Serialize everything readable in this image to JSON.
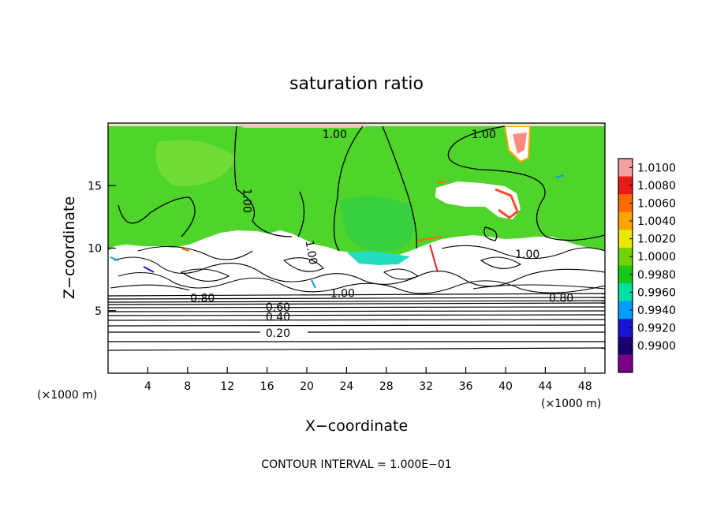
{
  "chart_data": {
    "type": "heatmap",
    "title": "saturation ratio",
    "xlabel": "X−coordinate",
    "ylabel": "Z−coordinate",
    "x_unit_left": "(×1000 m)",
    "x_unit_right": "(×1000 m)",
    "xlim": [
      0,
      50
    ],
    "ylim": [
      0,
      20
    ],
    "x_ticks": [
      4,
      8,
      12,
      16,
      20,
      24,
      28,
      32,
      36,
      40,
      44,
      48
    ],
    "y_ticks": [
      5,
      10,
      15
    ],
    "footer": "CONTOUR INTERVAL = 1.000E−01",
    "colorbar": {
      "levels": [
        "1.0100",
        "1.0080",
        "1.0060",
        "1.0040",
        "1.0020",
        "1.0000",
        "0.9980",
        "0.9960",
        "0.9940",
        "0.9920",
        "0.9900"
      ],
      "colors": [
        "#f4a0a0",
        "#e81b1b",
        "#ff6a00",
        "#ffa500",
        "#e8e800",
        "#6fd400",
        "#18c818",
        "#00e0a0",
        "#009cff",
        "#1616d2",
        "#1a0070",
        "#7a0088"
      ]
    },
    "contour_labels": [
      {
        "text": "1.00",
        "x": 22.8,
        "z": 18.8,
        "rot": 0
      },
      {
        "text": "1.00",
        "x": 37.8,
        "z": 18.8,
        "rot": 0
      },
      {
        "text": "1.00",
        "x": 13.6,
        "z": 13.8,
        "rot": 90
      },
      {
        "text": "1.00",
        "x": 20.1,
        "z": 9.6,
        "rot": 80
      },
      {
        "text": "1.00",
        "x": 42.2,
        "z": 9.2,
        "rot": 0
      },
      {
        "text": "1.00",
        "x": 23.6,
        "z": 6.1,
        "rot": 0
      },
      {
        "text": "0.80",
        "x": 9.5,
        "z": 5.7,
        "rot": 0
      },
      {
        "text": "0.80",
        "x": 45.6,
        "z": 5.7,
        "rot": 0
      },
      {
        "text": "0.60",
        "x": 17.1,
        "z": 5.0,
        "rot": 0
      },
      {
        "text": "0.40",
        "x": 17.1,
        "z": 4.2,
        "rot": 0
      },
      {
        "text": "0.20",
        "x": 17.1,
        "z": 2.9,
        "rot": 0
      }
    ],
    "grid": false
  }
}
